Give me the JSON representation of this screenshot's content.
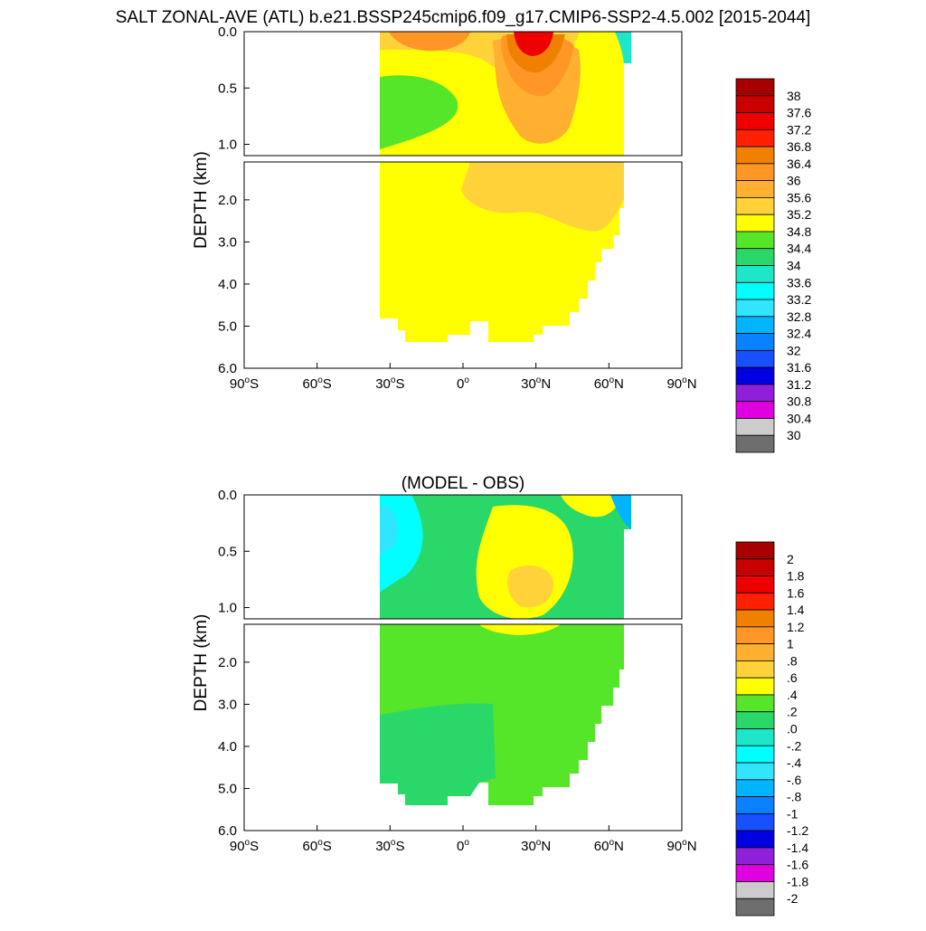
{
  "title": "SALT ZONAL-AVE (ATL) b.e21.BSSP245cmip6.f09_g17.CMIP6-SSP2-4.5.002 [2015-2044]",
  "chart_data": [
    {
      "type": "heatmap",
      "title": "",
      "ylabel": "DEPTH (km)",
      "xlim": [
        -90,
        90
      ],
      "ylim": [
        6.0,
        0.0
      ],
      "upper_panel_yticks": [
        "0.0",
        "0.5",
        "1.0"
      ],
      "lower_panel_yticks": [
        "2.0",
        "3.0",
        "4.0",
        "5.0",
        "6.0"
      ],
      "xticks": [
        {
          "deg": "90",
          "hemi": "S"
        },
        {
          "deg": "60",
          "hemi": "S"
        },
        {
          "deg": "30",
          "hemi": "S"
        },
        {
          "deg": "0",
          "hemi": ""
        },
        {
          "deg": "30",
          "hemi": "N"
        },
        {
          "deg": "60",
          "hemi": "N"
        },
        {
          "deg": "90",
          "hemi": "N"
        }
      ],
      "colorbar": {
        "labels": [
          "38",
          "37.6",
          "37.2",
          "36.8",
          "36.4",
          "36",
          "35.6",
          "35.2",
          "34.8",
          "34.4",
          "34",
          "33.6",
          "33.2",
          "32.8",
          "32.4",
          "32",
          "31.6",
          "31.2",
          "30.8",
          "30.4",
          "30"
        ],
        "colors": [
          "#a80000",
          "#c80000",
          "#ee0000",
          "#ff2000",
          "#f08000",
          "#ff9626",
          "#ffb030",
          "#ffd23a",
          "#ffff00",
          "#55e62a",
          "#2ad86a",
          "#1ee6c8",
          "#00ffff",
          "#30e6ff",
          "#00b4ff",
          "#0a82ff",
          "#1650ff",
          "#0000e0",
          "#9020d8",
          "#e000e0",
          "#cccccc",
          "#6e6e6e"
        ]
      }
    },
    {
      "type": "heatmap",
      "title": "(MODEL - OBS)",
      "ylabel": "DEPTH (km)",
      "xlim": [
        -90,
        90
      ],
      "ylim": [
        6.0,
        0.0
      ],
      "upper_panel_yticks": [
        "0.0",
        "0.5",
        "1.0"
      ],
      "lower_panel_yticks": [
        "2.0",
        "3.0",
        "4.0",
        "5.0",
        "6.0"
      ],
      "xticks": [
        {
          "deg": "90",
          "hemi": "S"
        },
        {
          "deg": "60",
          "hemi": "S"
        },
        {
          "deg": "30",
          "hemi": "S"
        },
        {
          "deg": "0",
          "hemi": ""
        },
        {
          "deg": "30",
          "hemi": "N"
        },
        {
          "deg": "60",
          "hemi": "N"
        },
        {
          "deg": "90",
          "hemi": "N"
        }
      ],
      "colorbar": {
        "labels": [
          "2",
          "1.8",
          "1.6",
          "1.4",
          "1.2",
          "1",
          ".8",
          ".6",
          ".4",
          ".2",
          ".0",
          "-.2",
          "-.4",
          "-.6",
          "-.8",
          "-1",
          "-1.2",
          "-1.4",
          "-1.6",
          "-1.8",
          "-2"
        ],
        "colors": [
          "#a80000",
          "#c80000",
          "#ee0000",
          "#ff2000",
          "#f08000",
          "#ff9626",
          "#ffb030",
          "#ffd23a",
          "#ffff00",
          "#55e62a",
          "#2ad86a",
          "#1ee6c8",
          "#00ffff",
          "#30e6ff",
          "#00b4ff",
          "#0a82ff",
          "#1650ff",
          "#0000e0",
          "#9020d8",
          "#e000e0",
          "#cccccc",
          "#6e6e6e"
        ]
      }
    }
  ]
}
